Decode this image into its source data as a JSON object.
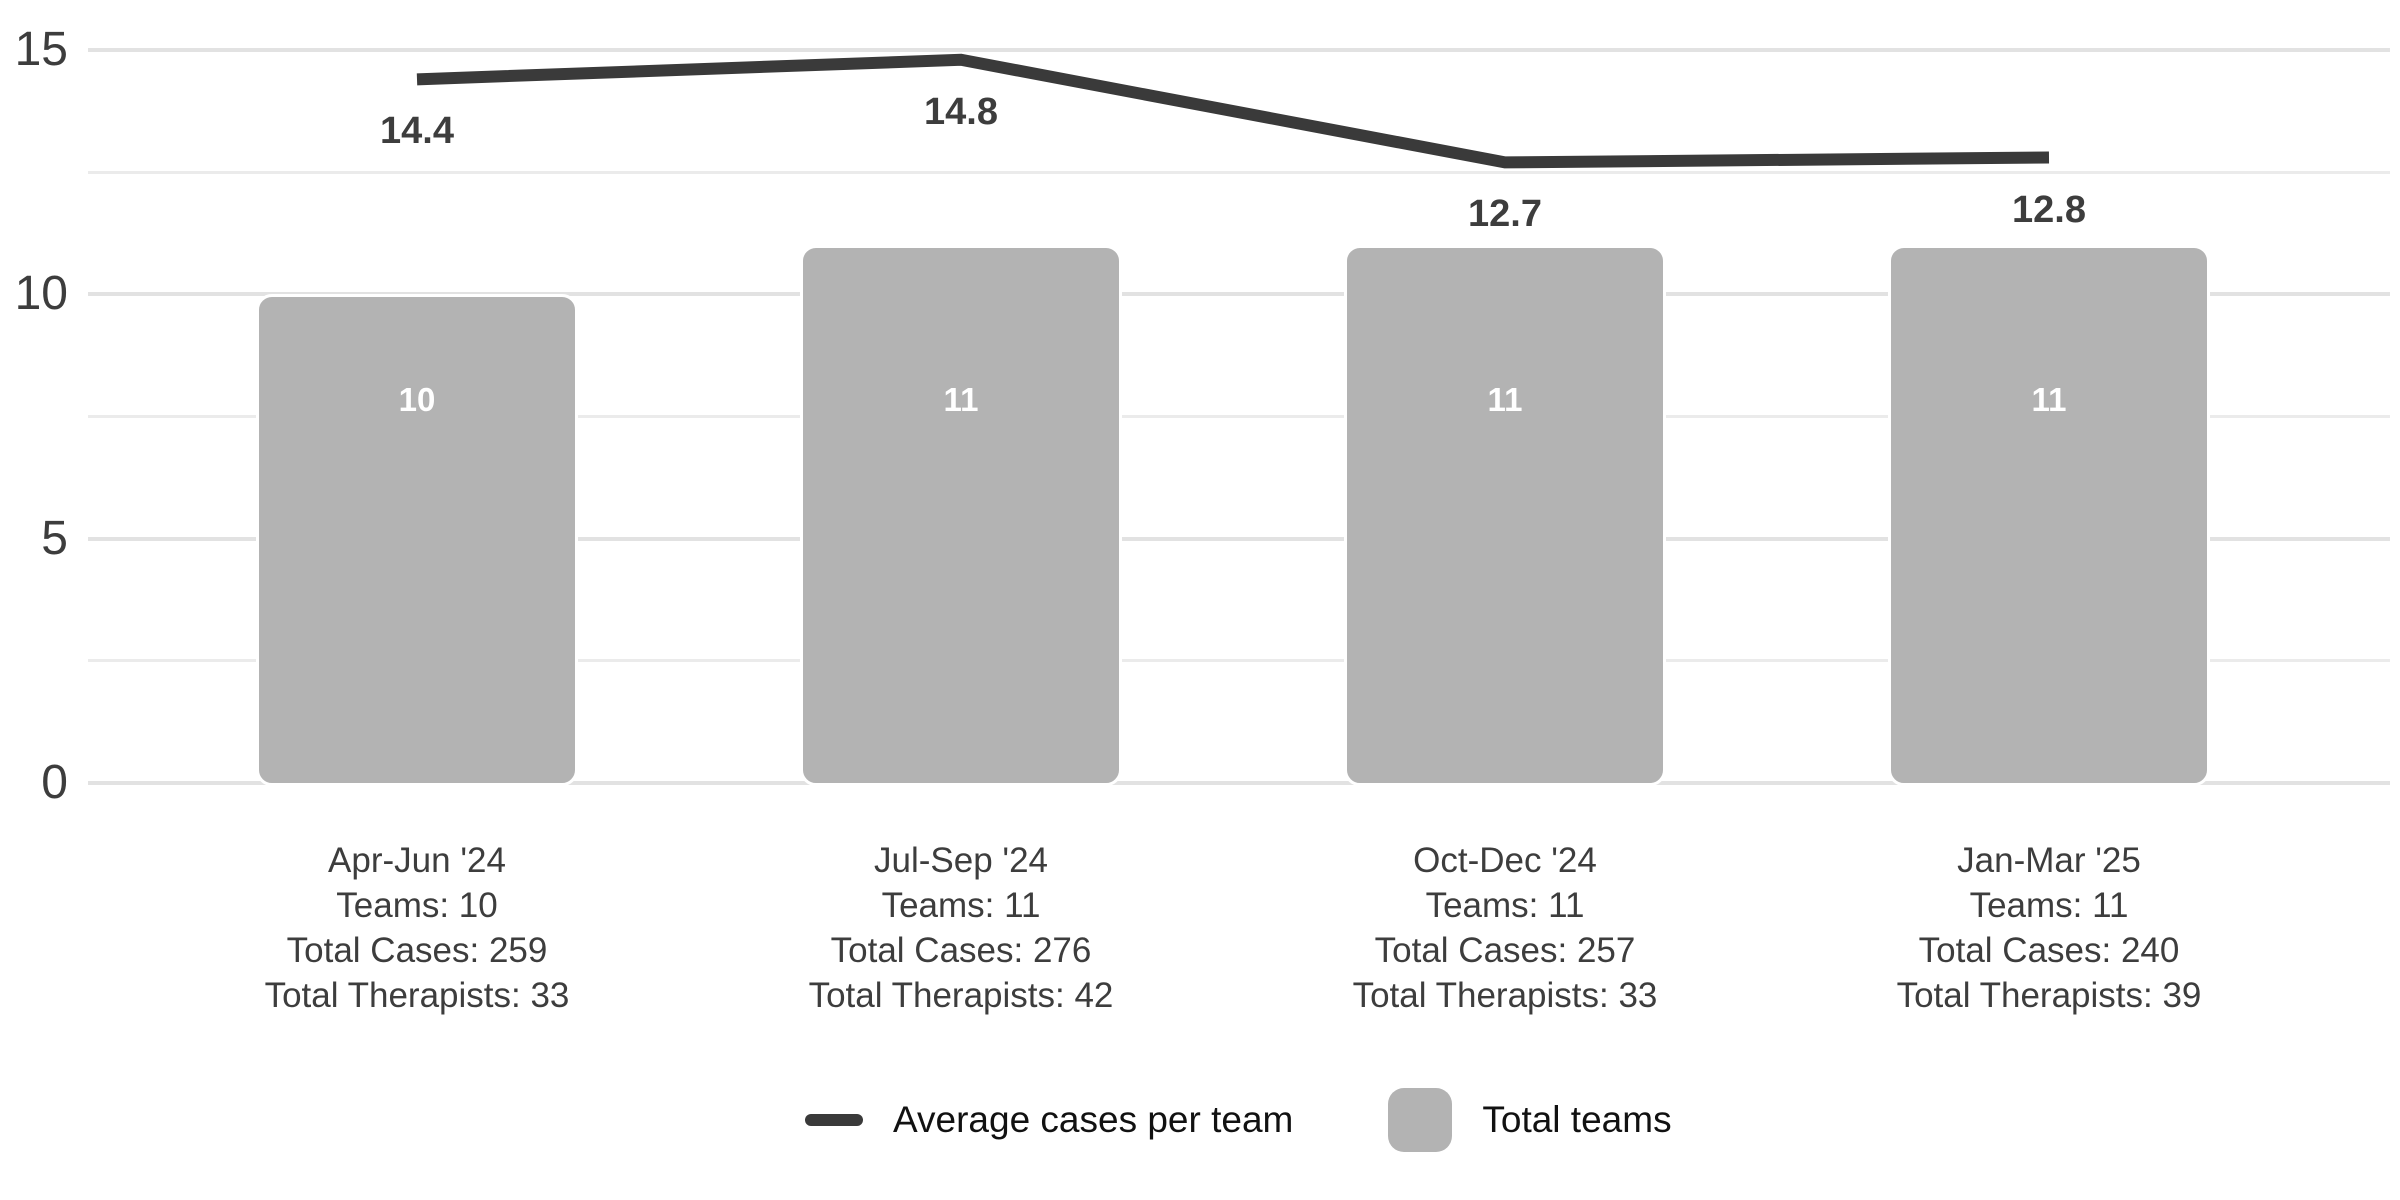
{
  "chart_data": {
    "type": "combo-bar-line",
    "categories": [
      "Apr-Jun '24",
      "Jul-Sep '24",
      "Oct-Dec '24",
      "Jan-Mar '25"
    ],
    "series": [
      {
        "name": "Average cases per team",
        "type": "line",
        "values": [
          14.4,
          14.8,
          12.7,
          12.8
        ],
        "labels": [
          "14.4",
          "14.8",
          "12.7",
          "12.8"
        ],
        "color": "#3a3a3a"
      },
      {
        "name": "Total teams",
        "type": "bar",
        "values": [
          10,
          11,
          11,
          11
        ],
        "labels": [
          "10",
          "11",
          "11",
          "11"
        ],
        "color": "#b3b3b3"
      }
    ],
    "x_axis_detail_lines": [
      [
        "Teams: 10",
        "Total Cases: 259",
        "Total Therapists: 33"
      ],
      [
        "Teams: 11",
        "Total Cases: 276",
        "Total Therapists: 42"
      ],
      [
        "Teams: 11",
        "Total Cases: 257",
        "Total Therapists: 33"
      ],
      [
        "Teams: 11",
        "Total Cases: 240",
        "Total Therapists: 39"
      ]
    ],
    "y_ticks": [
      0,
      5,
      10,
      15
    ],
    "y_minor_gridlines": [
      2.5,
      7.5,
      12.5
    ],
    "ylim": [
      0,
      15
    ],
    "grid": true,
    "legend_position": "bottom",
    "title": "",
    "xlabel": "",
    "ylabel": ""
  },
  "colors": {
    "background": "#ffffff",
    "bar_fill": "#b3b3b3",
    "bar_border": "#ffffff",
    "line_stroke": "#3a3a3a",
    "grid_major": "#e2e2e2",
    "grid_minor": "#ebebeb",
    "axis_text": "#3d3d3d",
    "data_label_text": "#3d3d3d",
    "bar_label_text": "#ffffff",
    "legend_text": "#111111"
  }
}
